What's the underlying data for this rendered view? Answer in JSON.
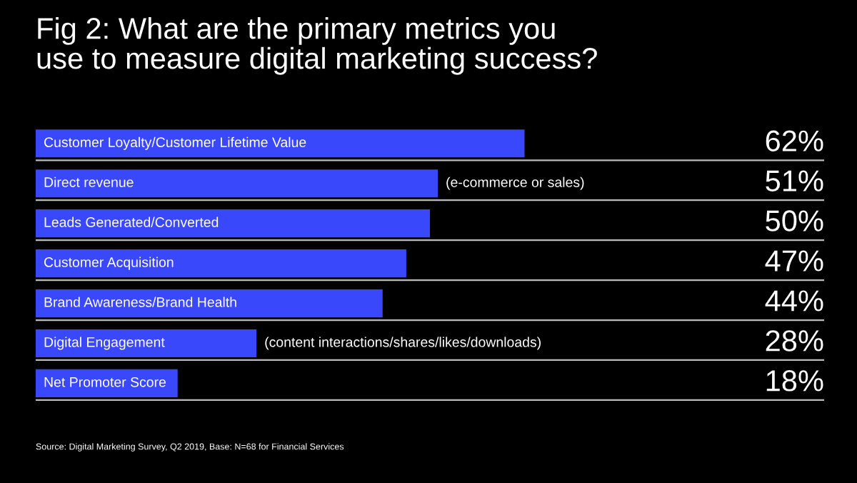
{
  "chart_data": {
    "type": "bar",
    "orientation": "horizontal",
    "title": "Fig 2: What are the primary metrics you\nuse to measure digital marketing success?",
    "categories": [
      "Customer Loyalty/Customer Lifetime Value",
      "Direct revenue",
      "Leads Generated/Converted",
      "Customer Acquisition",
      "Brand Awareness/Brand Health",
      "Digital Engagement",
      "Net Promoter Score"
    ],
    "values": [
      62,
      51,
      50,
      47,
      44,
      28,
      18
    ],
    "value_labels": [
      "62%",
      "51%",
      "50%",
      "47%",
      "44%",
      "28%",
      "18%"
    ],
    "color": "#3a48fb",
    "xlim": [
      0,
      100
    ],
    "annotations": [
      {
        "text": "(e-commerce or sales)",
        "x": 51,
        "y": "Direct revenue"
      },
      {
        "text": "(content interactions/shares/likes/downloads)",
        "x": 28,
        "y": "Digital Engagement"
      },
      "Source: Digital Marketing Survey, Q2 2019, Base: N=68 for Financial Services"
    ]
  }
}
